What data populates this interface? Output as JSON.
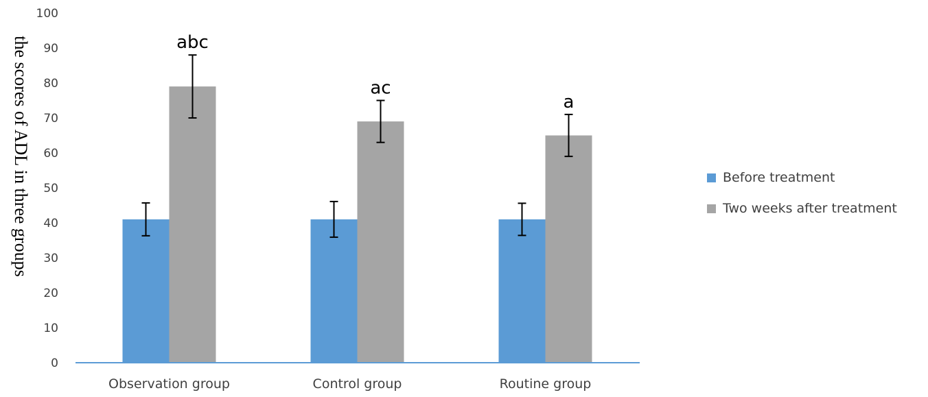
{
  "chart_data": {
    "type": "bar",
    "categories": [
      "Observation group",
      "Control group",
      "Routine group"
    ],
    "series": [
      {
        "name": "Before treatment",
        "color": "#5b9bd5",
        "values": [
          41,
          41,
          41
        ],
        "error": [
          4.7,
          5.1,
          4.6
        ]
      },
      {
        "name": "Two weeks after treatment",
        "color": "#a5a5a5",
        "values": [
          79,
          69,
          65
        ],
        "error": [
          9,
          6,
          6
        ]
      }
    ],
    "annotations": [
      "abc",
      "ac",
      "a"
    ],
    "ylabel": "the scores of ADL in three groups",
    "xlabel": "",
    "title": "",
    "ylim": [
      0,
      100
    ],
    "yticks": [
      "0",
      "10",
      "20",
      "30",
      "40",
      "50",
      "60",
      "70",
      "80",
      "90",
      "100"
    ],
    "grid": false,
    "legend_position": "right",
    "axis_color": "#5b9bd5"
  }
}
